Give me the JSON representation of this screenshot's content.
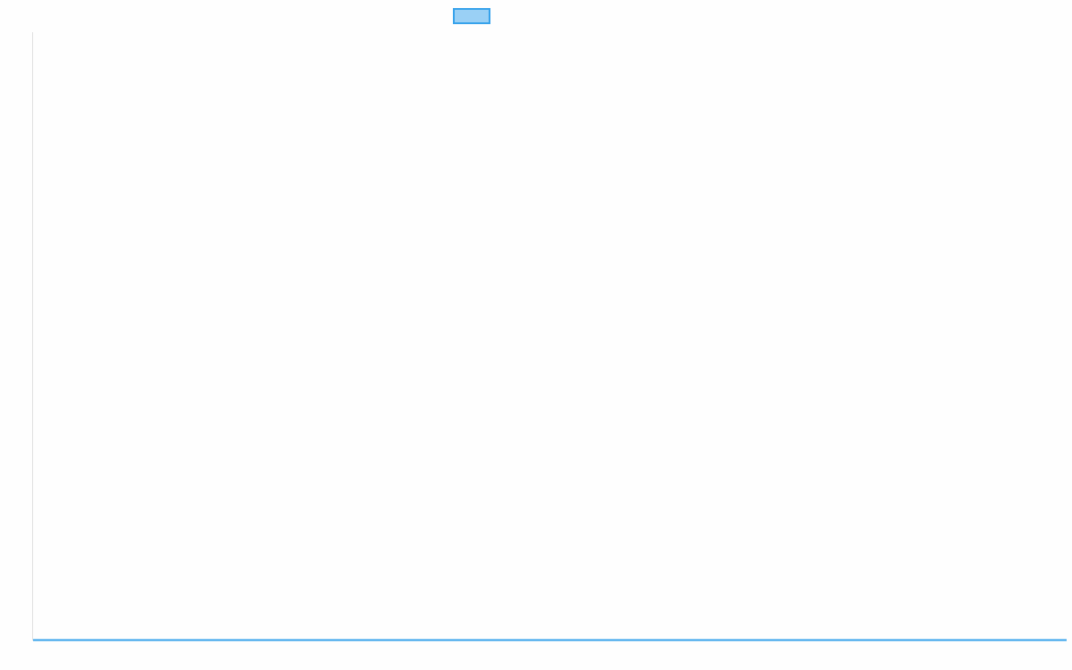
{
  "chart_data": {
    "type": "line",
    "title": "",
    "xlabel": "",
    "ylabel": "",
    "legend": {
      "placement": "top",
      "entries": [
        {
          "label": ""
        }
      ]
    },
    "grid": false,
    "series": [
      {
        "values": [
          0,
          0
        ],
        "color": "#36a2eb",
        "fill": "#9ad0f5"
      }
    ]
  }
}
